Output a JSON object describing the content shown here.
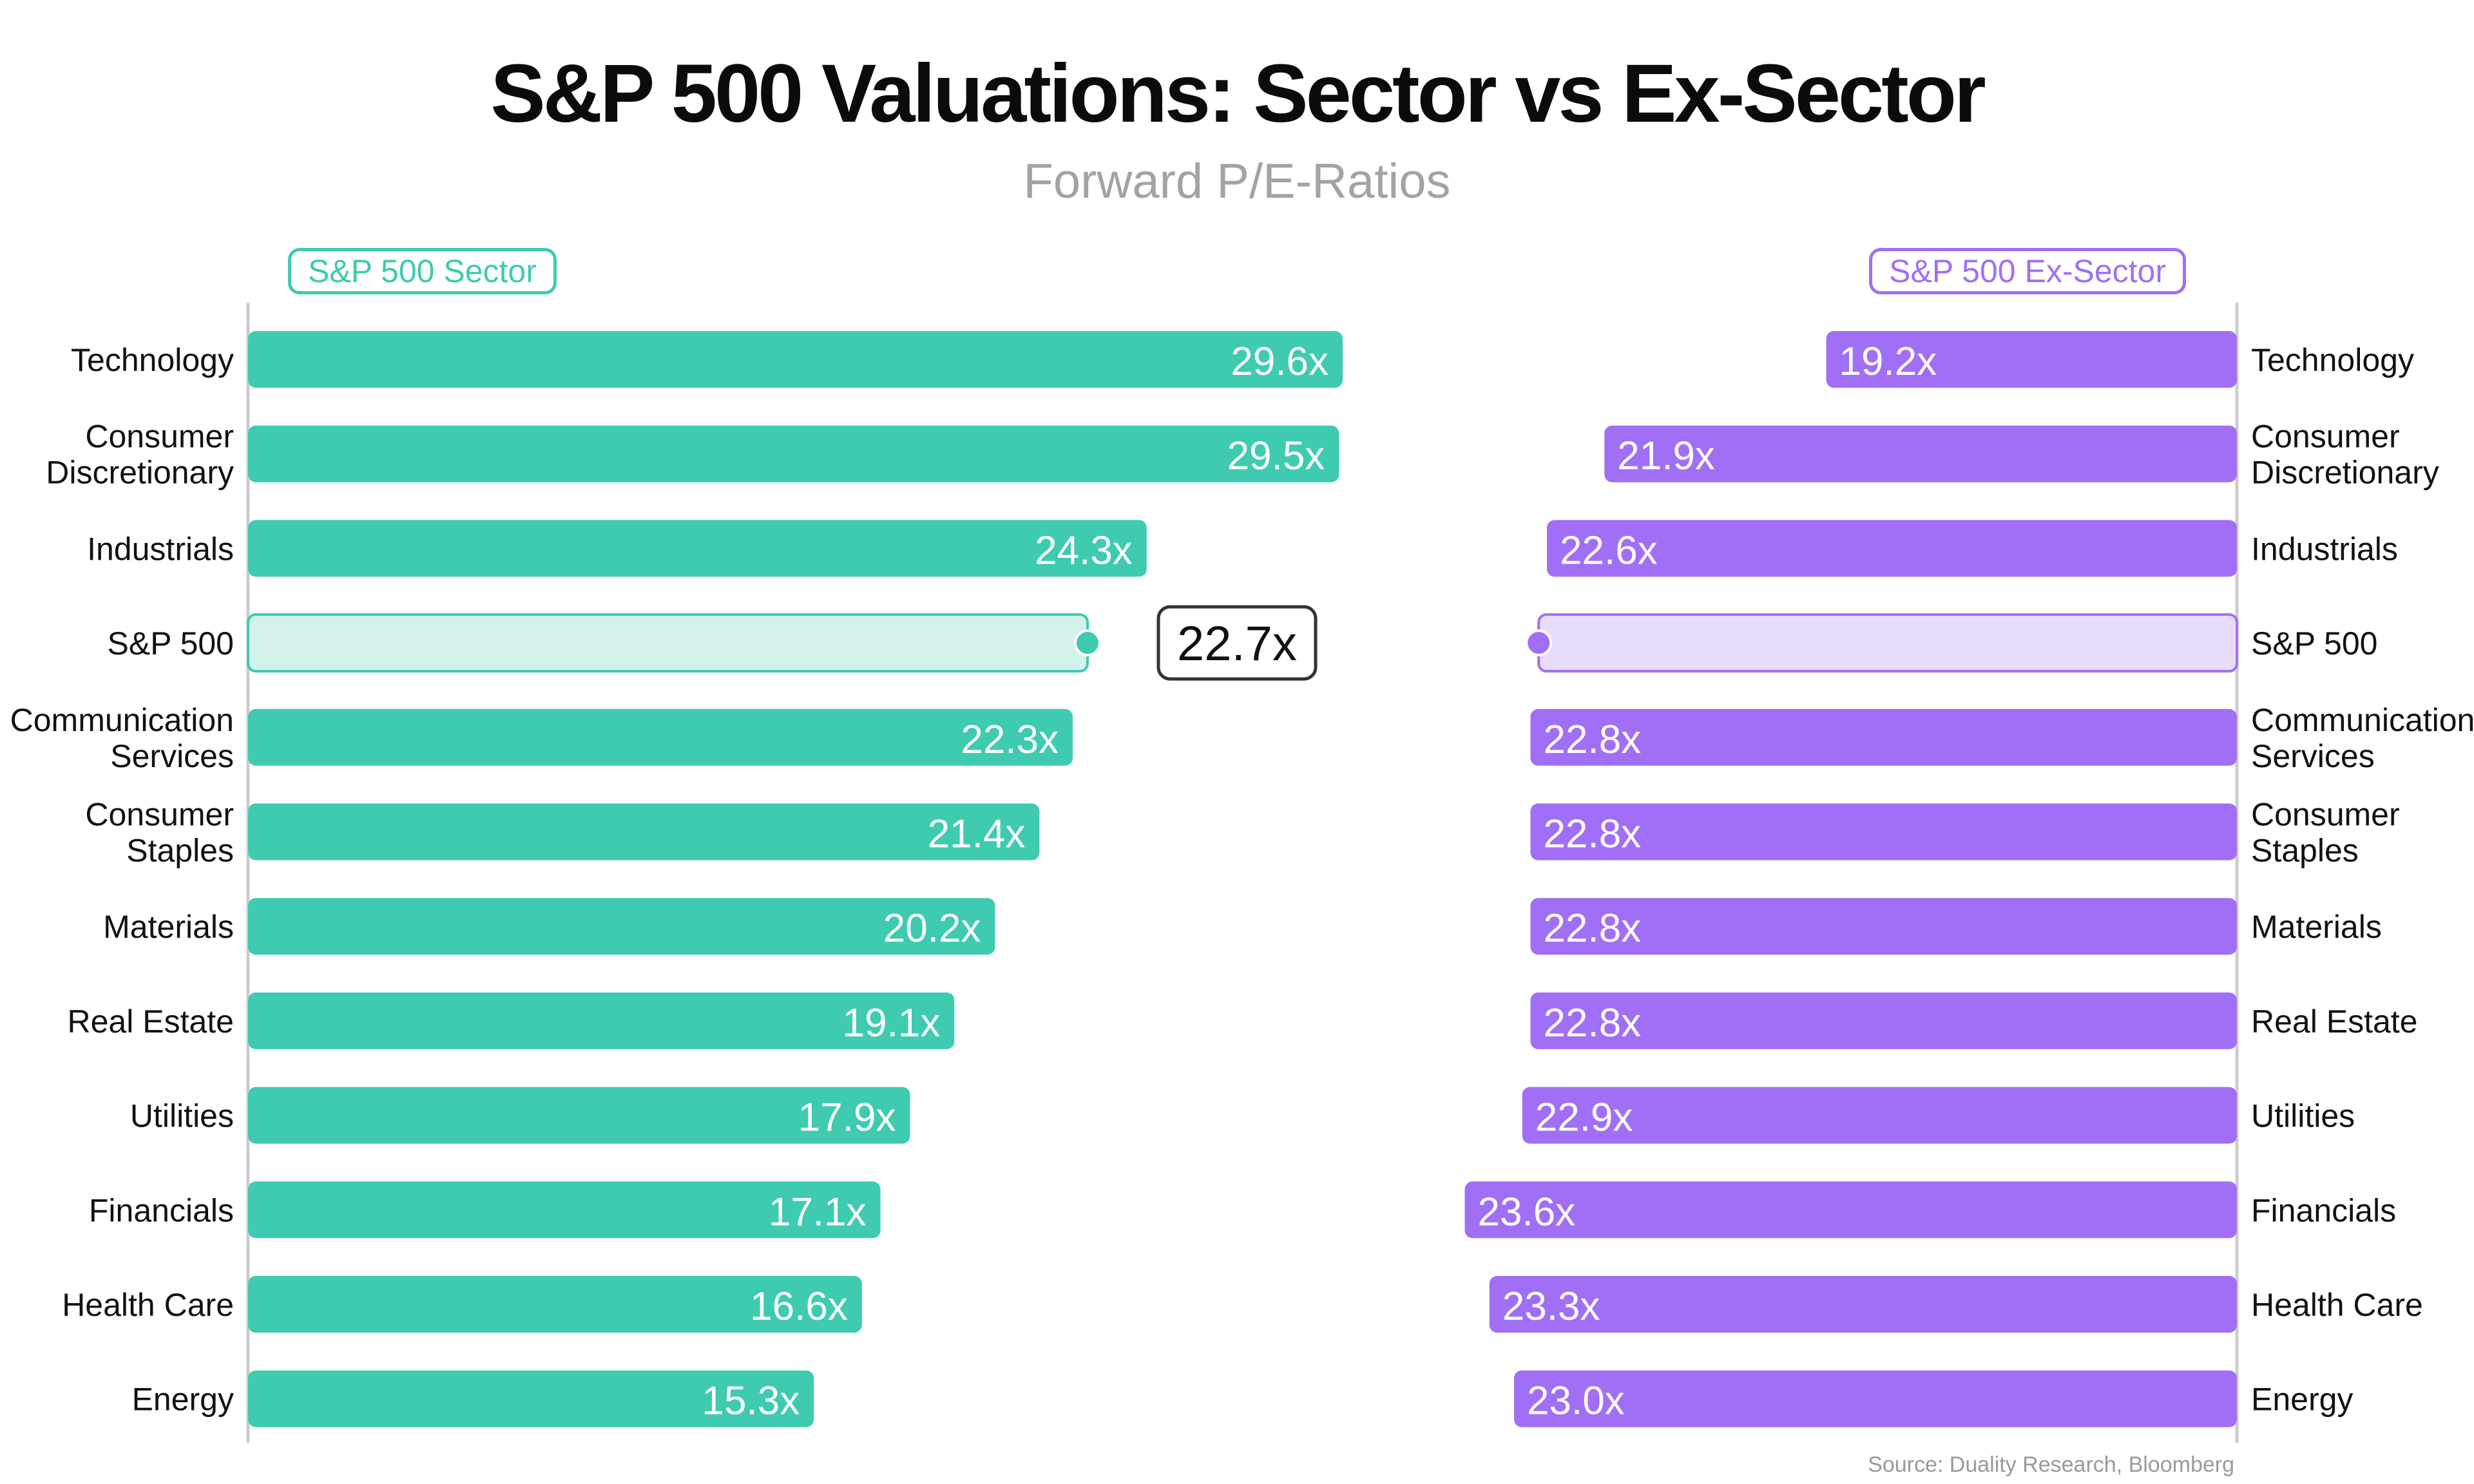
{
  "title": "S&P 500 Valuations: Sector vs Ex-Sector",
  "subtitle": "Forward P/E-Ratios",
  "source": "Source: Duality Research, Bloomberg",
  "colors": {
    "sector": "#3ecbb0",
    "sector_light": "#d2f2eb",
    "ex_sector": "#a06ff5",
    "ex_sector_light": "#e8dcfd",
    "axis": "#cccccc",
    "highlight_box": "#333333"
  },
  "chart_data": {
    "type": "bar",
    "title": "S&P 500 Valuations: Sector vs Ex-Sector",
    "subtitle": "Forward P/E-Ratios",
    "categories": [
      "Technology",
      "Consumer Discretionary",
      "Industrials",
      "S&P 500",
      "Communication Services",
      "Consumer Staples",
      "Materials",
      "Real Estate",
      "Utilities",
      "Financials",
      "Health Care",
      "Energy"
    ],
    "category_lines": [
      [
        "Technology"
      ],
      [
        "Consumer",
        "Discretionary"
      ],
      [
        "Industrials"
      ],
      [
        "S&P 500"
      ],
      [
        "Communication",
        "Services"
      ],
      [
        "Consumer",
        "Staples"
      ],
      [
        "Materials"
      ],
      [
        "Real Estate"
      ],
      [
        "Utilities"
      ],
      [
        "Financials"
      ],
      [
        "Health Care"
      ],
      [
        "Energy"
      ]
    ],
    "series": [
      {
        "name": "S&P 500 Sector",
        "values": [
          29.6,
          29.5,
          24.3,
          22.7,
          22.3,
          21.4,
          20.2,
          19.1,
          17.9,
          17.1,
          16.6,
          15.3
        ],
        "labels": [
          "29.6x",
          "29.5x",
          "24.3x",
          "",
          "22.3x",
          "21.4x",
          "20.2x",
          "19.1x",
          "17.9x",
          "17.1x",
          "16.6x",
          "15.3x"
        ]
      },
      {
        "name": "S&P 500 Ex-Sector",
        "values": [
          19.2,
          21.9,
          22.6,
          22.7,
          22.8,
          22.8,
          22.8,
          22.8,
          22.9,
          23.6,
          23.3,
          23.0
        ],
        "labels": [
          "19.2x",
          "21.9x",
          "22.6x",
          "",
          "22.8x",
          "22.8x",
          "22.8x",
          "22.8x",
          "22.9x",
          "23.6x",
          "23.3x",
          "23.0x"
        ]
      }
    ],
    "benchmark": {
      "category": "S&P 500",
      "value": 22.7,
      "label": "22.7x"
    },
    "legend": [
      "S&P 500 Sector",
      "S&P 500 Ex-Sector"
    ],
    "grid": false
  }
}
